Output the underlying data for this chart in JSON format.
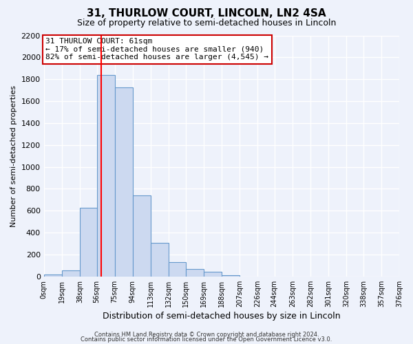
{
  "title": "31, THURLOW COURT, LINCOLN, LN2 4SA",
  "subtitle": "Size of property relative to semi-detached houses in Lincoln",
  "xlabel": "Distribution of semi-detached houses by size in Lincoln",
  "ylabel": "Number of semi-detached properties",
  "bin_edges": [
    0,
    19,
    38,
    56,
    75,
    94,
    113,
    132,
    150,
    169,
    188,
    207,
    226,
    244,
    263,
    282,
    301,
    320,
    338,
    357,
    376
  ],
  "bin_counts": [
    20,
    55,
    625,
    1840,
    1725,
    740,
    305,
    130,
    65,
    40,
    10,
    0,
    0,
    0,
    0,
    0,
    0,
    0,
    0,
    0
  ],
  "bar_color": "#ccd9f0",
  "bar_edge_color": "#6699cc",
  "redline_x": 61,
  "annotation_title": "31 THURLOW COURT: 61sqm",
  "annotation_line1": "← 17% of semi-detached houses are smaller (940)",
  "annotation_line2": "82% of semi-detached houses are larger (4,545) →",
  "annotation_box_facecolor": "#ffffff",
  "annotation_box_edgecolor": "#cc0000",
  "tick_labels": [
    "0sqm",
    "19sqm",
    "38sqm",
    "56sqm",
    "75sqm",
    "94sqm",
    "113sqm",
    "132sqm",
    "150sqm",
    "169sqm",
    "188sqm",
    "207sqm",
    "226sqm",
    "244sqm",
    "263sqm",
    "282sqm",
    "301sqm",
    "320sqm",
    "338sqm",
    "357sqm",
    "376sqm"
  ],
  "ylim": [
    0,
    2200
  ],
  "yticks": [
    0,
    200,
    400,
    600,
    800,
    1000,
    1200,
    1400,
    1600,
    1800,
    2000,
    2200
  ],
  "footer1": "Contains HM Land Registry data © Crown copyright and database right 2024.",
  "footer2": "Contains public sector information licensed under the Open Government Licence v3.0.",
  "background_color": "#eef2fb",
  "grid_color": "#ffffff",
  "title_fontsize": 11,
  "subtitle_fontsize": 9
}
